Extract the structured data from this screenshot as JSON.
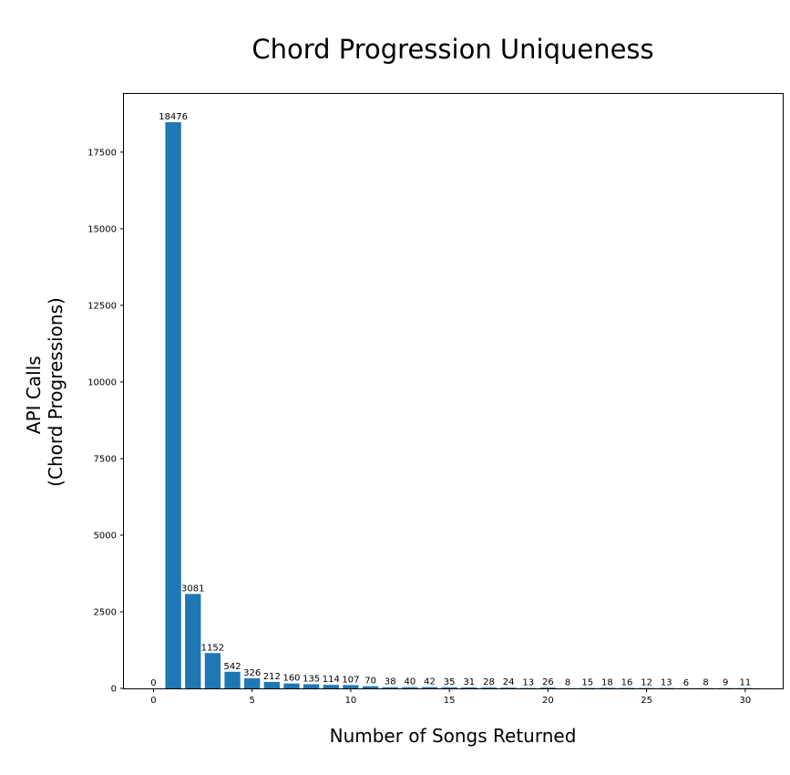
{
  "chart_data": {
    "type": "bar",
    "title": "Chord Progression Uniqueness",
    "xlabel": "Number of Songs Returned",
    "ylabel": [
      "API Calls",
      "(Chord Progressions)"
    ],
    "x": [
      0,
      1,
      2,
      3,
      4,
      5,
      6,
      7,
      8,
      9,
      10,
      11,
      12,
      13,
      14,
      15,
      16,
      17,
      18,
      19,
      20,
      21,
      22,
      23,
      24,
      25,
      26,
      27,
      28,
      29,
      30
    ],
    "values": [
      0,
      18476,
      3081,
      1152,
      542,
      326,
      212,
      160,
      135,
      114,
      107,
      70,
      38,
      40,
      42,
      35,
      31,
      28,
      24,
      13,
      26,
      8,
      15,
      18,
      16,
      12,
      13,
      6,
      8,
      9,
      11
    ],
    "data_labels": [
      "0",
      "18476",
      "3081",
      "1152",
      "542",
      "326",
      "212",
      "160",
      "135",
      "114",
      "107",
      "70",
      "38",
      "40",
      "42",
      "35",
      "31",
      "28",
      "24",
      "13",
      "26",
      "8",
      "15",
      "18",
      "16",
      "12",
      "13",
      "6",
      "8",
      "9",
      "11"
    ],
    "xlim": [
      -1.5,
      31.9
    ],
    "ylim": [
      0,
      19400
    ],
    "x_ticks": [
      0,
      5,
      10,
      15,
      20,
      25,
      30
    ],
    "x_tick_labels": [
      "0",
      "5",
      "10",
      "15",
      "20",
      "25",
      "30"
    ],
    "y_ticks": [
      0,
      2500,
      5000,
      7500,
      10000,
      12500,
      15000,
      17500
    ],
    "y_tick_labels": [
      "0",
      "2500",
      "5000",
      "7500",
      "10000",
      "12500",
      "15000",
      "17500"
    ],
    "grid": false,
    "bar_color": "#1f77b4",
    "text_color": "#000000"
  }
}
